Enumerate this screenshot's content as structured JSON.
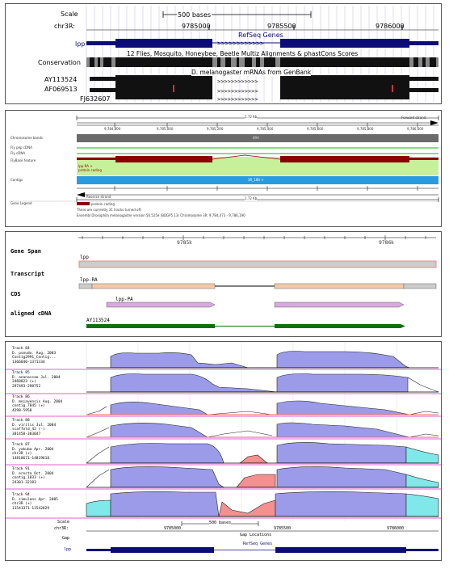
{
  "panel1": {
    "scale_label": "Scale",
    "chrom_label": "chr3R:",
    "scale_bar_text": "500 bases",
    "positions": [
      "9785000",
      "9785500",
      "9786000"
    ],
    "gene_label": "lpp",
    "refseq_title": "RefSeq Genes",
    "conservation_label": "Conservation",
    "conservation_title": "12 Flies, Mosquito, Honeybee, Beetle Multiz Alignments & phastCons Scores",
    "mrna_title": "D. melanogaster mRNAs from GenBank",
    "accessions": [
      "AY113524",
      "AF069513",
      "FJ632607"
    ]
  },
  "panel2": {
    "length_top": "1.72 Kb",
    "strand_label": "Forward strand",
    "ticks": [
      "9,784,800",
      "9,785,000",
      "9,785,200",
      "9,785,400",
      "9,785,600",
      "9,785,800",
      "9,786,000"
    ],
    "left_labels": [
      "Chromosome bands",
      "Fly pep cDNA",
      "Fly cDNA",
      "FlyBase feature",
      "",
      "Contigs",
      "",
      "Gene Legend"
    ],
    "band_label": "89A",
    "feature_name": "lpp-RA >",
    "feature_type": "protein coding",
    "contig_label": "3R_180 >",
    "reverse_strand": "Reverse strand",
    "length_bottom": "1.72 Kb",
    "legend_item": "protein coding",
    "note1": "There are currently 31 tracks turned off.",
    "note2": "Ensembl Drosophila melanogaster version 56.525e (BDGP5.13) Chromosome 3R: 9,784,473 - 9,786,190"
  },
  "panel3": {
    "ticks": [
      "9785k",
      "9786k"
    ],
    "gene_span_label": "Gene Span",
    "gene_name": "lpp",
    "transcript_label": "Transcript",
    "transcript_name": "lpp-RA",
    "cds_label": "CDS",
    "cds_name": "lpp-PA",
    "cdna_label": "aligned cDNA",
    "cdna_name": "AY113524"
  },
  "panel4": {
    "tracks": [
      {
        "track": "Track 84",
        "species": "D. pseudo. Aug. 2003",
        "contig": "Contig2991_Contig...",
        "range": "1366840-1371334"
      },
      {
        "track": "Track 85",
        "species": "D. ananassae Jul. 2004",
        "contig": "2468823 (+)",
        "range": "297493-298752"
      },
      {
        "track": "Track 86",
        "species": "D. mojavensis Aug. 2004",
        "contig": "contig_7845 (+)",
        "range": "4298-5958"
      },
      {
        "track": "Track 88",
        "species": "D. virilis Jul. 2004",
        "contig": "scaffold_42 (-)",
        "range": "381458-383047"
      },
      {
        "track": "Track 87",
        "species": "D. yakuba Apr. 2004",
        "contig": "chr3R (+)",
        "range": "14818671-14819618"
      },
      {
        "track": "Track 91",
        "species": "D. erecta Oct. 2004",
        "contig": "contig_1833 (+)",
        "range": "24301-32183"
      },
      {
        "track": "Track 94",
        "species": "D. simulans Apr. 2005",
        "contig": "chr3R (+)",
        "range": "11541371-11542829"
      }
    ],
    "footer_scale_label": "Scale",
    "footer_chrom_label": "chr3R:",
    "footer_scale_text": "500 bases",
    "footer_positions": [
      "9785000",
      "9785500",
      "9786000"
    ],
    "gap_label": "Gap",
    "gap_track_title": "Gap Locations",
    "gene_label": "lpp",
    "refseq_title": "RefSeq Genes"
  }
}
